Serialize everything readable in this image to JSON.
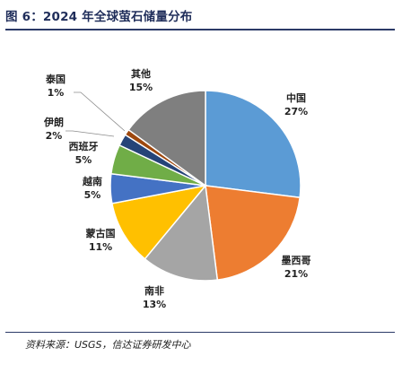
{
  "title": "图 6：2024 年全球萤石储量分布",
  "source": "资料来源：USGS，信达证券研发中心",
  "chart_data": {
    "type": "pie",
    "title": "图 6：2024 年全球萤石储量分布",
    "unit": "%",
    "slices": [
      {
        "name": "中国",
        "value": 27,
        "label": "27%",
        "color": "#5b9bd5"
      },
      {
        "name": "墨西哥",
        "value": 21,
        "label": "21%",
        "color": "#ed7d31"
      },
      {
        "name": "南非",
        "value": 13,
        "label": "13%",
        "color": "#a5a5a5"
      },
      {
        "name": "蒙古国",
        "value": 11,
        "label": "11%",
        "color": "#ffc000"
      },
      {
        "name": "越南",
        "value": 5,
        "label": "5%",
        "color": "#4472c4"
      },
      {
        "name": "西班牙",
        "value": 5,
        "label": "5%",
        "color": "#70ad47"
      },
      {
        "name": "伊朗",
        "value": 2,
        "label": "2%",
        "color": "#264478"
      },
      {
        "name": "泰国",
        "value": 1,
        "label": "1%",
        "color": "#9e480e"
      },
      {
        "name": "其他",
        "value": 15,
        "label": "15%",
        "color": "#7f7f7f"
      }
    ]
  }
}
